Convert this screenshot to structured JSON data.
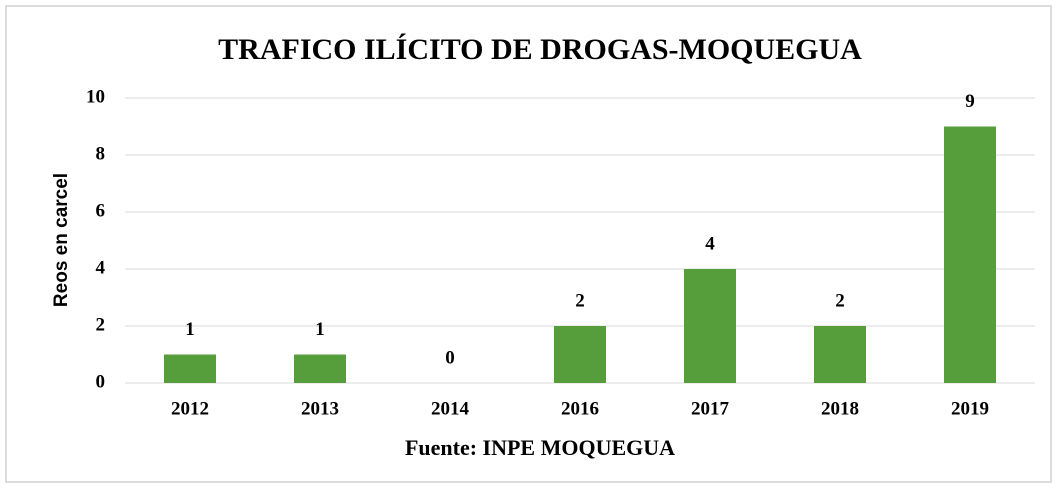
{
  "chart_data": {
    "type": "bar",
    "title": "TRAFICO ILÍCITO DE DROGAS-MOQUEGUA",
    "x_label": "Fuente: INPE MOQUEGUA",
    "y_label": "Reos en carcel",
    "categories": [
      "2012",
      "2013",
      "2014",
      "2016",
      "2017",
      "2018",
      "2019"
    ],
    "values": [
      1,
      1,
      0,
      2,
      4,
      2,
      9
    ],
    "color": "#559e3b",
    "ylim": [
      0,
      10
    ],
    "yticks": [
      0,
      2,
      4,
      6,
      8,
      10
    ],
    "grid": true
  }
}
